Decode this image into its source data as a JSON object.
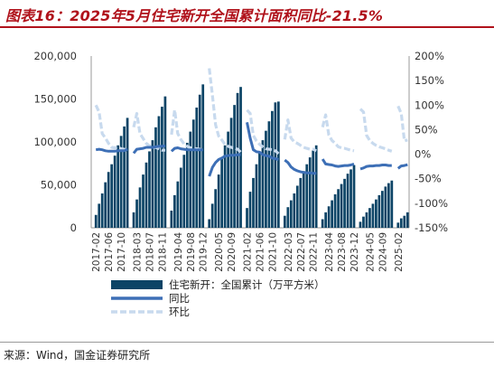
{
  "title": "图表16：2025年5月住宅新开全国累计面积同比-21.5%",
  "source": "来源：Wind，国金证券研究所",
  "chart_data": {
    "type": "bar+line",
    "left_axis": {
      "ylim": [
        0,
        200000
      ],
      "ticks": [
        "0",
        "50,000",
        "100,000",
        "150,000",
        "200,000"
      ]
    },
    "right_axis": {
      "ylim": [
        -150,
        200
      ],
      "ticks": [
        "-150%",
        "-100%",
        "-50%",
        "0%",
        "50%",
        "100%",
        "150%",
        "200%"
      ]
    },
    "x_tick_labels": [
      "2017-02",
      "2017-06",
      "2017-10",
      "2018-03",
      "2018-07",
      "2018-11",
      "2019-04",
      "2019-08",
      "2019-12",
      "2020-05",
      "2020-09",
      "2021-02",
      "2021-06",
      "2021-10",
      "2022-03",
      "2022-07",
      "2022-11",
      "2023-04",
      "2023-08",
      "2023-12",
      "2024-05",
      "2024-09",
      "2025-02"
    ],
    "years": [
      {
        "year": 2017,
        "values": [
          null,
          15000,
          28000,
          40000,
          53000,
          65000,
          74000,
          84000,
          96000,
          107000,
          118000,
          128000
        ]
      },
      {
        "year": 2018,
        "values": [
          null,
          18000,
          33000,
          47000,
          62000,
          76000,
          89000,
          102000,
          117000,
          130000,
          141000,
          153000
        ]
      },
      {
        "year": 2019,
        "values": [
          null,
          20000,
          38000,
          54000,
          70000,
          85000,
          99000,
          112000,
          126000,
          140000,
          155000,
          167000
        ]
      },
      {
        "year": 2020,
        "values": [
          null,
          10000,
          28000,
          45000,
          62000,
          80000,
          96000,
          112000,
          128000,
          143000,
          157000,
          164000
        ]
      },
      {
        "year": 2021,
        "values": [
          null,
          23000,
          42000,
          58000,
          74000,
          89000,
          102000,
          113000,
          124000,
          136000,
          146000,
          147000
        ]
      },
      {
        "year": 2022,
        "values": [
          null,
          14000,
          24000,
          32000,
          40000,
          49000,
          58000,
          66000,
          74000,
          82000,
          90000,
          96000
        ]
      },
      {
        "year": 2023,
        "values": [
          null,
          10000,
          18000,
          25000,
          32000,
          39000,
          45000,
          51000,
          57000,
          63000,
          68000,
          73000
        ]
      },
      {
        "year": 2024,
        "values": [
          null,
          7000,
          13000,
          18000,
          23000,
          28000,
          33000,
          38000,
          43000,
          48000,
          52000,
          55000
        ]
      },
      {
        "year": 2025,
        "values": [
          null,
          6000,
          11000,
          14000,
          18000
        ]
      }
    ],
    "yoy_pct": [
      {
        "year": 2017,
        "values": [
          null,
          9,
          10,
          9,
          7,
          6,
          6,
          6,
          7,
          7,
          7,
          10
        ]
      },
      {
        "year": 2018,
        "values": [
          null,
          2,
          10,
          11,
          12,
          14,
          14,
          14,
          15,
          16,
          16,
          17
        ]
      },
      {
        "year": 2019,
        "values": [
          null,
          6,
          12,
          13,
          11,
          10,
          9,
          9,
          9,
          9,
          9,
          9
        ]
      },
      {
        "year": 2020,
        "values": [
          null,
          -45,
          -27,
          -17,
          -11,
          -8,
          -4,
          -3,
          -2,
          -2,
          -1,
          -1
        ]
      },
      {
        "year": 2021,
        "values": [
          null,
          65,
          33,
          9,
          5,
          4,
          -1,
          -3,
          -4,
          -8,
          -9,
          -11
        ]
      },
      {
        "year": 2022,
        "values": [
          null,
          -12,
          -17,
          -26,
          -31,
          -34,
          -36,
          -37,
          -38,
          -38,
          -39,
          -39
        ]
      },
      {
        "year": 2023,
        "values": [
          null,
          -10,
          -20,
          -21,
          -22,
          -24,
          -25,
          -24,
          -23,
          -23,
          -22,
          -20
        ]
      },
      {
        "year": 2024,
        "values": [
          null,
          -30,
          -28,
          -25,
          -24,
          -24,
          -23,
          -23,
          -22,
          -22,
          -23,
          -23
        ]
      },
      {
        "year": 2025,
        "values": [
          null,
          -29,
          -24,
          -23,
          -21.5
        ]
      }
    ],
    "mom_pct": [
      {
        "year": 2017,
        "values": [
          null,
          100,
          86,
          42,
          33,
          22,
          14,
          13,
          14,
          11,
          10,
          8
        ]
      },
      {
        "year": 2018,
        "values": [
          null,
          55,
          83,
          42,
          32,
          22,
          17,
          14,
          14,
          11,
          8,
          8
        ]
      },
      {
        "year": 2019,
        "values": [
          null,
          40,
          90,
          42,
          30,
          21,
          16,
          13,
          12,
          11,
          10,
          8
        ]
      },
      {
        "year": 2020,
        "values": [
          null,
          175,
          120,
          60,
          37,
          29,
          20,
          16,
          14,
          12,
          10,
          4
        ]
      },
      {
        "year": 2021,
        "values": [
          null,
          90,
          83,
          38,
          27,
          20,
          15,
          11,
          10,
          9,
          7,
          1
        ]
      },
      {
        "year": 2022,
        "values": [
          null,
          30,
          70,
          33,
          25,
          22,
          18,
          14,
          12,
          10,
          10,
          7
        ]
      },
      {
        "year": 2023,
        "values": [
          null,
          55,
          80,
          39,
          28,
          22,
          15,
          13,
          12,
          10,
          8,
          7
        ]
      },
      {
        "year": 2024,
        "values": [
          null,
          92,
          86,
          38,
          28,
          22,
          18,
          15,
          13,
          11,
          8,
          6
        ]
      },
      {
        "year": 2025,
        "values": [
          null,
          98,
          83,
          27,
          29
        ]
      }
    ],
    "legend": [
      {
        "label": "住宅新开：全国累计（万平方米）",
        "color": "#0c4466",
        "kind": "bar"
      },
      {
        "label": "同比",
        "color": "#3d6fb6",
        "kind": "line"
      },
      {
        "label": "环比",
        "color": "#c8daee",
        "kind": "dashed"
      }
    ],
    "colors": {
      "bar": "#0c4466",
      "yoy": "#3d6fb6",
      "mom": "#c8daee",
      "axis": "#999999"
    }
  }
}
